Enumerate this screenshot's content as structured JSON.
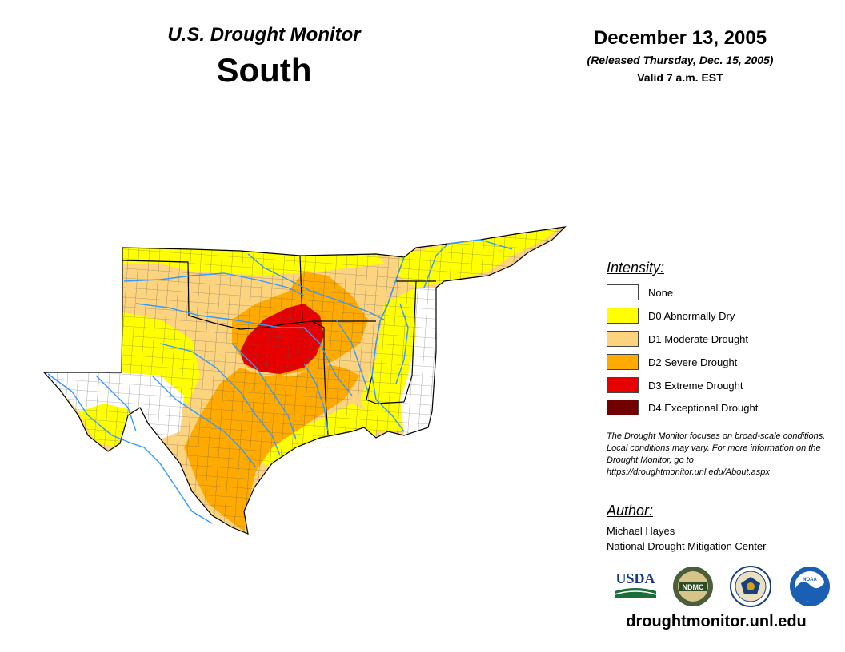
{
  "header": {
    "subtitle": "U.S. Drought Monitor",
    "region": "South",
    "date": "December 13, 2005",
    "released": "(Released Thursday, Dec. 15, 2005)",
    "valid": "Valid 7 a.m. EST"
  },
  "legend": {
    "title": "Intensity:",
    "items": [
      {
        "label": "None",
        "color": "#ffffff"
      },
      {
        "label": "D0 Abnormally Dry",
        "color": "#ffff00"
      },
      {
        "label": "D1 Moderate Drought",
        "color": "#fcd37f"
      },
      {
        "label": "D2 Severe Drought",
        "color": "#ffaa00"
      },
      {
        "label": "D3 Extreme Drought",
        "color": "#e60000"
      },
      {
        "label": "D4 Exceptional Drought",
        "color": "#730000"
      }
    ]
  },
  "disclaimer": "The Drought Monitor focuses on broad-scale conditions. Local conditions may vary. For more information on the Drought Monitor, go to https://droughtmonitor.unl.edu/About.aspx",
  "author": {
    "title": "Author:",
    "name": "Michael Hayes",
    "org": "National Drought Mitigation Center"
  },
  "logos": {
    "usda": "USDA",
    "ndmc": "NDMC",
    "noaa": "NOAA"
  },
  "url": "droughtmonitor.unl.edu",
  "colors": {
    "river": "#3399ff",
    "border": "#000000",
    "county": "#555555"
  }
}
